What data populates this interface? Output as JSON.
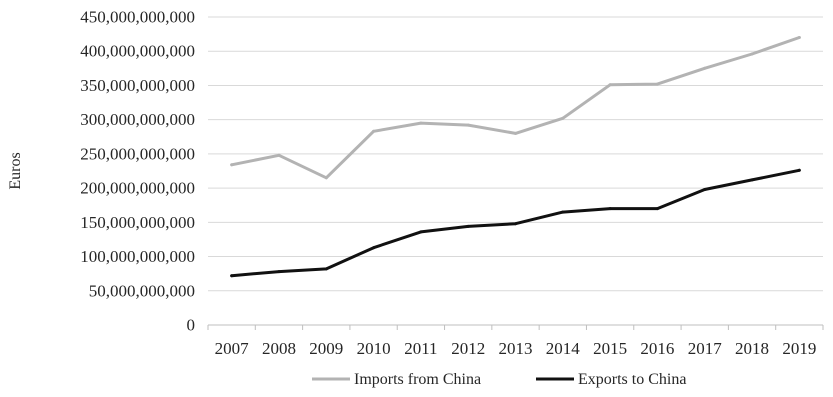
{
  "chart_data": {
    "type": "line",
    "x": [
      "2007",
      "2008",
      "2009",
      "2010",
      "2011",
      "2012",
      "2013",
      "2014",
      "2015",
      "2016",
      "2017",
      "2018",
      "2019"
    ],
    "ylabel": "Euros",
    "ylim": [
      0,
      450000000000
    ],
    "yticks": [
      0,
      50000000000,
      100000000000,
      150000000000,
      200000000000,
      250000000000,
      300000000000,
      350000000000,
      400000000000,
      450000000000
    ],
    "ytick_labels": [
      "0",
      "50,000,000,000",
      "100,000,000,000",
      "150,000,000,000",
      "200,000,000,000",
      "250,000,000,000",
      "300,000,000,000",
      "350,000,000,000",
      "400,000,000,000",
      "450,000,000,000"
    ],
    "grid": true,
    "legend_position": "bottom",
    "series": [
      {
        "name": "Imports from China",
        "color": "#b3b3b3",
        "values": [
          234000000000,
          248000000000,
          215000000000,
          283000000000,
          295000000000,
          292000000000,
          280000000000,
          302000000000,
          351000000000,
          352000000000,
          375000000000,
          396000000000,
          420000000000
        ]
      },
      {
        "name": "Exports to China",
        "color": "#111111",
        "values": [
          72000000000,
          78000000000,
          82000000000,
          113000000000,
          136000000000,
          144000000000,
          148000000000,
          165000000000,
          170000000000,
          170000000000,
          198000000000,
          212000000000,
          226000000000
        ]
      }
    ]
  }
}
